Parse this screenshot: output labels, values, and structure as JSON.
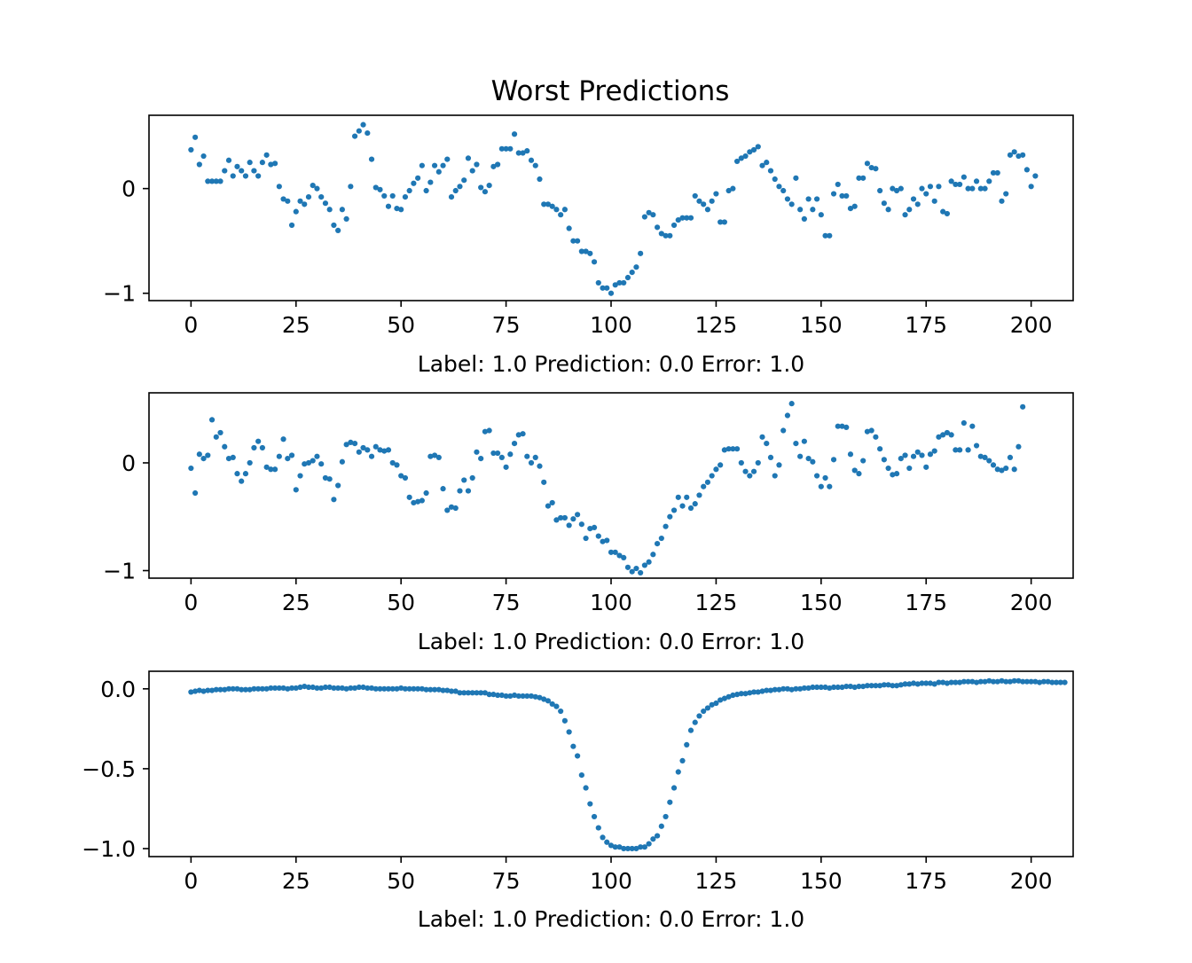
{
  "title": "Worst Predictions",
  "chart_data": [
    {
      "type": "scatter",
      "xlabel": "Label: 1.0 Prediction: 0.0 Error: 1.0",
      "xlim": [
        -10,
        210
      ],
      "ylim": [
        -1.07,
        0.7
      ],
      "xticks": [
        0,
        25,
        50,
        75,
        100,
        125,
        150,
        175,
        200
      ],
      "xtick_labels": [
        "0",
        "25",
        "50",
        "75",
        "100",
        "125",
        "150",
        "175",
        "200"
      ],
      "yticks": [
        0,
        -1
      ],
      "ytick_labels": [
        "0",
        "−1"
      ],
      "series": [
        {
          "color": "#1f77b4",
          "y": [
            0.37,
            0.49,
            0.23,
            0.31,
            0.07,
            0.07,
            0.07,
            0.07,
            0.17,
            0.27,
            0.12,
            0.21,
            0.17,
            0.12,
            0.25,
            0.17,
            0.12,
            0.25,
            0.32,
            0.23,
            0.24,
            0.02,
            -0.1,
            -0.12,
            -0.35,
            -0.22,
            -0.12,
            -0.15,
            -0.08,
            0.03,
            0.0,
            -0.08,
            -0.14,
            -0.2,
            -0.35,
            -0.4,
            -0.2,
            -0.29,
            0.02,
            0.5,
            0.55,
            0.61,
            0.53,
            0.28,
            0.01,
            -0.01,
            -0.07,
            -0.17,
            -0.07,
            -0.19,
            -0.2,
            -0.08,
            -0.02,
            0.05,
            0.1,
            0.22,
            -0.02,
            0.06,
            0.22,
            0.16,
            0.22,
            0.28,
            -0.08,
            -0.02,
            0.02,
            0.08,
            0.29,
            0.17,
            0.23,
            0.01,
            -0.03,
            0.03,
            0.21,
            0.23,
            0.38,
            0.38,
            0.38,
            0.52,
            0.34,
            0.34,
            0.36,
            0.27,
            0.22,
            0.09,
            -0.15,
            -0.15,
            -0.17,
            -0.2,
            -0.25,
            -0.2,
            -0.38,
            -0.5,
            -0.5,
            -0.6,
            -0.6,
            -0.62,
            -0.7,
            -0.9,
            -0.95,
            -0.95,
            -1.0,
            -0.92,
            -0.9,
            -0.9,
            -0.85,
            -0.8,
            -0.75,
            -0.62,
            -0.27,
            -0.23,
            -0.25,
            -0.37,
            -0.43,
            -0.45,
            -0.45,
            -0.35,
            -0.3,
            -0.28,
            -0.28,
            -0.28,
            -0.07,
            -0.12,
            -0.15,
            -0.2,
            -0.12,
            -0.05,
            -0.32,
            -0.32,
            -0.02,
            0.0,
            0.26,
            0.29,
            0.31,
            0.35,
            0.37,
            0.4,
            0.22,
            0.25,
            0.17,
            0.09,
            0.02,
            -0.02,
            -0.1,
            -0.15,
            0.1,
            -0.2,
            -0.29,
            -0.1,
            -0.2,
            -0.1,
            -0.25,
            -0.45,
            -0.45,
            -0.05,
            0.04,
            -0.07,
            -0.07,
            -0.19,
            -0.17,
            0.1,
            0.1,
            0.24,
            0.2,
            0.19,
            -0.02,
            -0.14,
            -0.2,
            0.0,
            -0.02,
            0.0,
            -0.25,
            -0.2,
            -0.1,
            -0.15,
            0.0,
            -0.05,
            0.02,
            -0.12,
            0.02,
            -0.22,
            -0.24,
            0.07,
            0.04,
            0.04,
            0.11,
            0.0,
            0.0,
            0.07,
            0.0,
            0.0,
            0.07,
            0.15,
            0.15,
            -0.12,
            -0.05,
            0.32,
            0.35,
            0.31,
            0.32,
            0.18,
            0.02,
            0.12
          ]
        }
      ]
    },
    {
      "type": "scatter",
      "xlabel": "Label: 1.0 Prediction: 0.0 Error: 1.0",
      "xlim": [
        -10,
        210
      ],
      "ylim": [
        -1.07,
        0.65
      ],
      "xticks": [
        0,
        25,
        50,
        75,
        100,
        125,
        150,
        175,
        200
      ],
      "xtick_labels": [
        "0",
        "25",
        "50",
        "75",
        "100",
        "125",
        "150",
        "175",
        "200"
      ],
      "yticks": [
        0,
        -1
      ],
      "ytick_labels": [
        "0",
        "−1"
      ],
      "series": [
        {
          "color": "#1f77b4",
          "y": [
            -0.05,
            -0.28,
            0.08,
            0.04,
            0.07,
            0.4,
            0.24,
            0.28,
            0.15,
            0.04,
            0.05,
            -0.1,
            -0.17,
            -0.1,
            0.0,
            0.14,
            0.2,
            0.14,
            -0.04,
            -0.06,
            -0.06,
            0.06,
            0.22,
            0.04,
            0.07,
            -0.25,
            -0.12,
            -0.01,
            0.0,
            0.02,
            0.06,
            -0.01,
            -0.14,
            -0.15,
            -0.34,
            -0.21,
            0.01,
            0.17,
            0.19,
            0.18,
            0.1,
            0.14,
            0.12,
            0.06,
            0.15,
            0.12,
            0.11,
            0.12,
            0.0,
            -0.02,
            -0.12,
            -0.14,
            -0.32,
            -0.37,
            -0.36,
            -0.35,
            -0.28,
            0.06,
            0.07,
            0.05,
            -0.24,
            -0.44,
            -0.41,
            -0.42,
            -0.26,
            -0.16,
            -0.26,
            -0.14,
            0.1,
            0.04,
            0.29,
            0.3,
            0.09,
            0.09,
            0.05,
            -0.04,
            0.08,
            0.18,
            0.26,
            0.27,
            0.06,
            0.0,
            0.05,
            -0.03,
            -0.18,
            -0.4,
            -0.37,
            -0.53,
            -0.51,
            -0.51,
            -0.58,
            -0.52,
            -0.48,
            -0.57,
            -0.7,
            -0.61,
            -0.6,
            -0.68,
            -0.73,
            -0.72,
            -0.83,
            -0.83,
            -0.86,
            -0.88,
            -0.97,
            -1.01,
            -0.98,
            -1.02,
            -0.95,
            -0.92,
            -0.85,
            -0.75,
            -0.7,
            -0.59,
            -0.5,
            -0.44,
            -0.32,
            -0.4,
            -0.32,
            -0.42,
            -0.38,
            -0.3,
            -0.22,
            -0.18,
            -0.12,
            -0.06,
            -0.02,
            0.12,
            0.13,
            0.13,
            0.13,
            0.0,
            -0.08,
            -0.12,
            -0.08,
            0.0,
            0.24,
            0.18,
            0.05,
            -0.12,
            -0.02,
            0.3,
            0.44,
            0.55,
            0.18,
            0.06,
            0.2,
            0.04,
            0.01,
            -0.12,
            -0.22,
            -0.14,
            -0.22,
            0.03,
            0.34,
            0.34,
            0.33,
            0.08,
            -0.07,
            -0.1,
            0.02,
            0.29,
            0.3,
            0.24,
            0.13,
            0.03,
            -0.05,
            -0.11,
            -0.1,
            0.04,
            0.07,
            -0.05,
            0.06,
            0.1,
            0.07,
            -0.04,
            0.08,
            0.11,
            0.24,
            0.26,
            0.28,
            0.26,
            0.12,
            0.12,
            0.37,
            0.12,
            0.34,
            0.16,
            0.06,
            0.05,
            0.02,
            -0.02,
            -0.06,
            -0.07,
            -0.05,
            0.05,
            -0.06,
            0.15,
            0.52
          ]
        }
      ]
    },
    {
      "type": "scatter",
      "xlabel": "Label: 1.0 Prediction: 0.0 Error: 1.0",
      "xlim": [
        -10,
        210
      ],
      "ylim": [
        -1.05,
        0.11
      ],
      "xticks": [
        0,
        25,
        50,
        75,
        100,
        125,
        150,
        175,
        200
      ],
      "xtick_labels": [
        "0",
        "25",
        "50",
        "75",
        "100",
        "125",
        "150",
        "175",
        "200"
      ],
      "yticks": [
        0.0,
        -0.5,
        -1.0
      ],
      "ytick_labels": [
        "0.0",
        "−0.5",
        "−1.0"
      ],
      "series": [
        {
          "color": "#1f77b4",
          "y": [
            -0.02,
            -0.015,
            -0.01,
            -0.015,
            -0.01,
            -0.01,
            -0.005,
            -0.005,
            -0.005,
            0.0,
            0.0,
            0.0,
            -0.005,
            -0.005,
            -0.005,
            0.0,
            0.0,
            0.0,
            0.0,
            0.005,
            0.005,
            0.005,
            0.005,
            0.0,
            0.005,
            0.005,
            0.01,
            0.015,
            0.01,
            0.01,
            0.005,
            0.005,
            0.01,
            0.01,
            0.005,
            0.005,
            0.005,
            0.0,
            0.005,
            0.005,
            0.01,
            0.01,
            0.005,
            0.005,
            0.0,
            0.0,
            0.0,
            0.0,
            0.0,
            0.0,
            0.005,
            0.0,
            0.0,
            0.0,
            0.0,
            0.0,
            -0.005,
            -0.005,
            -0.005,
            -0.005,
            -0.01,
            -0.01,
            -0.015,
            -0.015,
            -0.025,
            -0.025,
            -0.025,
            -0.025,
            -0.025,
            -0.025,
            -0.025,
            -0.035,
            -0.035,
            -0.04,
            -0.04,
            -0.045,
            -0.045,
            -0.04,
            -0.045,
            -0.045,
            -0.045,
            -0.045,
            -0.05,
            -0.055,
            -0.065,
            -0.075,
            -0.095,
            -0.11,
            -0.14,
            -0.2,
            -0.27,
            -0.36,
            -0.42,
            -0.54,
            -0.62,
            -0.72,
            -0.8,
            -0.87,
            -0.93,
            -0.96,
            -0.98,
            -0.99,
            -0.99,
            -1.0,
            -1.0,
            -1.0,
            -1.0,
            -0.99,
            -0.99,
            -0.97,
            -0.94,
            -0.92,
            -0.86,
            -0.8,
            -0.71,
            -0.62,
            -0.52,
            -0.45,
            -0.35,
            -0.26,
            -0.21,
            -0.17,
            -0.14,
            -0.12,
            -0.1,
            -0.09,
            -0.07,
            -0.06,
            -0.05,
            -0.04,
            -0.035,
            -0.03,
            -0.03,
            -0.025,
            -0.02,
            -0.02,
            -0.015,
            -0.01,
            -0.01,
            -0.005,
            -0.005,
            0.0,
            0.0,
            -0.005,
            0.0,
            0.0,
            0.005,
            0.005,
            0.01,
            0.01,
            0.01,
            0.01,
            0.005,
            0.01,
            0.01,
            0.01,
            0.015,
            0.015,
            0.01,
            0.015,
            0.015,
            0.02,
            0.02,
            0.02,
            0.02,
            0.025,
            0.025,
            0.02,
            0.02,
            0.025,
            0.03,
            0.03,
            0.035,
            0.03,
            0.035,
            0.035,
            0.035,
            0.03,
            0.04,
            0.04,
            0.035,
            0.04,
            0.04,
            0.04,
            0.045,
            0.045,
            0.045,
            0.04,
            0.045,
            0.045,
            0.05,
            0.045,
            0.045,
            0.05,
            0.045,
            0.045,
            0.05,
            0.05,
            0.045,
            0.045,
            0.045,
            0.045,
            0.04,
            0.045,
            0.045,
            0.04,
            0.04,
            0.04,
            0.04
          ]
        }
      ]
    }
  ]
}
